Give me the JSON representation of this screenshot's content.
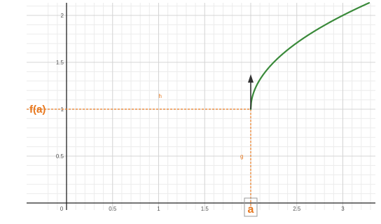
{
  "chart_data": {
    "type": "line",
    "x_ticks": [
      "0",
      "0.5",
      "1",
      "1.5",
      "2.5",
      "3"
    ],
    "y_ticks": [
      "0.5",
      "1",
      "1.5",
      "2"
    ],
    "x_range": [
      -0.23,
      3.35
    ],
    "y_range": [
      -0.05,
      2.12
    ],
    "grid": true,
    "series": [
      {
        "function": "f(x) = 1 + sqrt(x - 2)",
        "x": [
          2,
          2.05,
          2.1,
          2.2,
          2.3,
          2.4,
          2.5,
          2.6,
          2.7,
          2.8,
          2.9,
          3.0,
          3.1,
          3.2,
          3.3
        ],
        "y": [
          1,
          1.224,
          1.316,
          1.447,
          1.548,
          1.632,
          1.707,
          1.775,
          1.837,
          1.894,
          1.949,
          2.0,
          2.049,
          2.095,
          2.14
        ],
        "color": "#3a8a3a"
      }
    ],
    "point": {
      "x": 2,
      "y": 1
    },
    "annotations": {
      "fa_label": "f(a)",
      "a_label": "a",
      "h_label": "h",
      "g_label": "g"
    },
    "colors": {
      "guide": "#e8781e",
      "curve": "#3a8a3a",
      "arrow": "#333333",
      "grid_major": "#d4d4d4",
      "grid_minor": "#ececec"
    }
  }
}
